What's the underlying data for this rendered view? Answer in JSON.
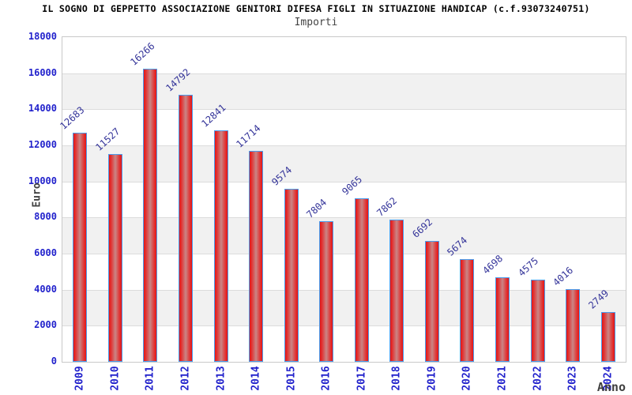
{
  "chart_data": {
    "type": "bar",
    "main_title": "IL SOGNO DI GEPPETTO ASSOCIAZIONE GENITORI DIFESA FIGLI IN SITUAZIONE HANDICAP (c.f.93073240751)",
    "title": "Importi",
    "xlabel": "Anno",
    "ylabel": "Euro",
    "categories": [
      "2009",
      "2010",
      "2011",
      "2012",
      "2013",
      "2014",
      "2015",
      "2016",
      "2017",
      "2018",
      "2019",
      "2020",
      "2021",
      "2022",
      "2023",
      "2024"
    ],
    "values": [
      12683,
      11527,
      16266,
      14792,
      12841,
      11714,
      9574,
      7804,
      9065,
      7862,
      6692,
      5674,
      4698,
      4575,
      4016,
      2749
    ],
    "ylim": [
      0,
      18000
    ],
    "ytick_step": 2000,
    "grid": "horizontal-bands-alternating",
    "legend": "none",
    "bar_labels": "rotated-above-bars",
    "colors": {
      "bar_edge": "#e51414",
      "bar_center": "#cb8181",
      "bar_border": "#4a9ded",
      "tick_label": "#2222cc",
      "value_label": "#333399",
      "band_alt": "#f1f1f1",
      "grid_line": "#dcdcdc",
      "plot_border": "#c9c9c9",
      "title": "#000000",
      "subtitle": "#444444",
      "axis_title": "#404040"
    }
  }
}
